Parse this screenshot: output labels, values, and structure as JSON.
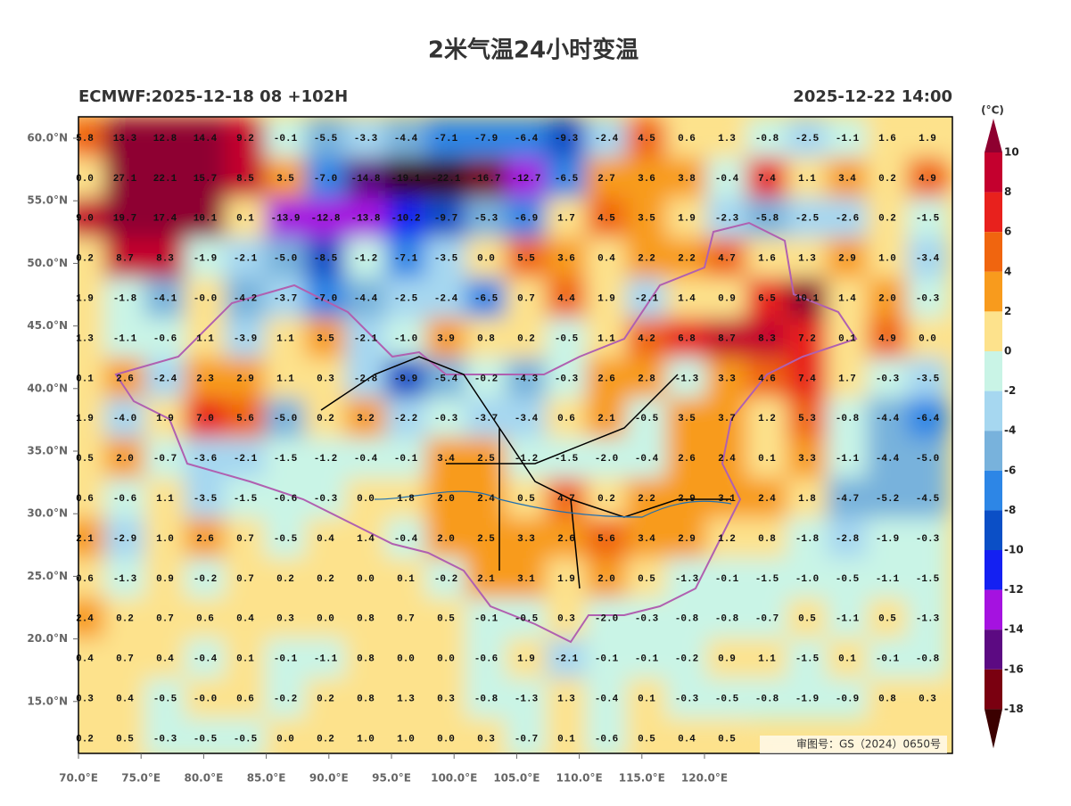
{
  "title": "2米气温24小时变温",
  "subtitle_left": "ECMWF:2025-12-18 08 +102H",
  "subtitle_right": "2025-12-22 14:00",
  "lat_ticks": [
    "60.0°N",
    "55.0°N",
    "50.0°N",
    "45.0°N",
    "40.0°N",
    "35.0°N",
    "30.0°N",
    "25.0°N",
    "20.0°N",
    "15.0°N"
  ],
  "lon_ticks": [
    "70.0°E",
    "75.0°E",
    "80.0°E",
    "85.0°E",
    "90.0°E",
    "95.0°E",
    "100.0°E",
    "105.0°E",
    "110.0°E",
    "115.0°E",
    "120.0°E"
  ],
  "colorbar": {
    "unit": "(°C)",
    "labels": [
      "10",
      "8",
      "6",
      "4",
      "2",
      "0",
      "-2",
      "-4",
      "-6",
      "-8",
      "-10",
      "-12",
      "-14",
      "-16",
      "-18"
    ],
    "colors": [
      "#8e0030",
      "#c4002e",
      "#e8211d",
      "#f0650f",
      "#f89b1d",
      "#fde28c",
      "#c9f4e6",
      "#a6d7f0",
      "#78b2dc",
      "#2d86e6",
      "#0b4fc6",
      "#1420f2",
      "#a512e0",
      "#5c0a82",
      "#7a0010",
      "#3b0000"
    ]
  },
  "grid": [
    [
      "5.8",
      "13.3",
      "12.8",
      "14.4",
      "9.2",
      "-0.1",
      "-5.5",
      "-3.3",
      "-4.4",
      "-7.1",
      "-7.9",
      "-6.4",
      "-9.3",
      "-2.4",
      "4.5",
      "0.6",
      "1.3",
      "-0.8",
      "-2.5",
      "-1.1",
      "1.6",
      "1.9"
    ],
    [
      "0.0",
      "27.1",
      "22.1",
      "15.7",
      "8.5",
      "3.5",
      "-7.0",
      "-14.8",
      "-19.1",
      "-22.1",
      "-16.7",
      "-12.7",
      "-6.5",
      "2.7",
      "3.6",
      "3.8",
      "-0.4",
      "7.4",
      "1.1",
      "3.4",
      "0.2",
      "4.9"
    ],
    [
      "9.0",
      "19.7",
      "17.4",
      "10.1",
      "0.1",
      "-13.9",
      "-12.8",
      "-13.8",
      "-10.2",
      "-9.7",
      "-5.3",
      "-6.9",
      "1.7",
      "4.5",
      "3.5",
      "1.9",
      "-2.3",
      "-5.8",
      "-2.5",
      "-2.6",
      "0.2",
      "-1.5"
    ],
    [
      "0.2",
      "8.7",
      "8.3",
      "-1.9",
      "-2.1",
      "-5.0",
      "-8.5",
      "-1.2",
      "-7.1",
      "-3.5",
      "0.0",
      "5.5",
      "3.6",
      "0.4",
      "2.2",
      "2.2",
      "4.7",
      "1.6",
      "1.3",
      "2.9",
      "1.0",
      "-3.4"
    ],
    [
      "1.9",
      "-1.8",
      "-4.1",
      "-0.0",
      "-4.2",
      "-3.7",
      "-7.0",
      "-4.4",
      "-2.5",
      "-2.4",
      "-6.5",
      "0.7",
      "4.4",
      "1.9",
      "-2.1",
      "1.4",
      "0.9",
      "6.5",
      "10.1",
      "1.4",
      "2.0",
      "-0.3"
    ],
    [
      "1.3",
      "-1.1",
      "-0.6",
      "1.1",
      "-3.9",
      "1.1",
      "3.5",
      "-2.1",
      "-1.0",
      "3.9",
      "0.8",
      "0.2",
      "-0.5",
      "1.1",
      "4.2",
      "6.8",
      "8.7",
      "8.3",
      "7.2",
      "0.1",
      "4.9",
      "0.0"
    ],
    [
      "0.1",
      "2.6",
      "-2.4",
      "2.3",
      "2.9",
      "1.1",
      "0.3",
      "-2.8",
      "-9.9",
      "-5.4",
      "-0.2",
      "-4.3",
      "-0.3",
      "2.6",
      "2.8",
      "-1.3",
      "3.3",
      "4.6",
      "7.4",
      "1.7",
      "-0.3",
      "-3.5"
    ],
    [
      "1.9",
      "-4.0",
      "1.9",
      "7.0",
      "5.6",
      "-5.0",
      "0.2",
      "3.2",
      "-2.2",
      "-0.3",
      "-3.7",
      "-3.4",
      "0.6",
      "2.1",
      "-0.5",
      "3.5",
      "3.7",
      "1.2",
      "5.3",
      "-0.8",
      "-4.4",
      "-6.4"
    ],
    [
      "0.5",
      "2.0",
      "-0.7",
      "-3.6",
      "-2.1",
      "-1.5",
      "-1.2",
      "-0.4",
      "-0.1",
      "3.4",
      "2.5",
      "-1.2",
      "-1.5",
      "-2.0",
      "-0.4",
      "2.6",
      "2.4",
      "0.1",
      "3.3",
      "-1.1",
      "-4.4",
      "-5.0"
    ],
    [
      "0.6",
      "-0.6",
      "1.1",
      "-3.5",
      "-1.5",
      "-0.6",
      "-0.3",
      "0.0",
      "1.8",
      "2.0",
      "2.4",
      "0.5",
      "4.7",
      "0.2",
      "2.2",
      "2.9",
      "3.1",
      "2.4",
      "1.8",
      "-4.7",
      "-5.2",
      "-4.5"
    ],
    [
      "2.1",
      "-2.9",
      "1.0",
      "2.6",
      "0.7",
      "-0.5",
      "0.4",
      "1.4",
      "-0.4",
      "2.0",
      "2.5",
      "3.3",
      "2.6",
      "5.6",
      "3.4",
      "2.9",
      "1.2",
      "0.8",
      "-1.8",
      "-2.8",
      "-1.9",
      "-0.3"
    ],
    [
      "0.6",
      "-1.3",
      "0.9",
      "-0.2",
      "0.7",
      "0.2",
      "0.2",
      "0.0",
      "0.1",
      "-0.2",
      "2.1",
      "3.1",
      "1.9",
      "2.0",
      "0.5",
      "-1.3",
      "-0.1",
      "-1.5",
      "-1.0",
      "-0.5",
      "-1.1",
      "-1.5"
    ],
    [
      "2.4",
      "0.2",
      "0.7",
      "0.6",
      "0.4",
      "0.3",
      "0.0",
      "0.8",
      "0.7",
      "0.5",
      "-0.1",
      "-0.5",
      "0.3",
      "-2.0",
      "-0.3",
      "-0.8",
      "-0.8",
      "-0.7",
      "0.5",
      "-1.1",
      "0.5",
      "-1.3"
    ],
    [
      "0.4",
      "0.7",
      "0.4",
      "-0.4",
      "0.1",
      "-0.1",
      "-1.1",
      "0.8",
      "0.0",
      "0.0",
      "-0.6",
      "1.9",
      "-2.1",
      "-0.1",
      "-0.1",
      "-0.2",
      "0.9",
      "1.1",
      "-1.5",
      "0.1",
      "-0.1",
      "-0.8"
    ],
    [
      "0.3",
      "0.4",
      "-0.5",
      "-0.0",
      "0.6",
      "-0.2",
      "0.2",
      "0.8",
      "1.3",
      "0.3",
      "-0.8",
      "-1.3",
      "1.3",
      "-0.4",
      "0.1",
      "-0.3",
      "-0.5",
      "-0.8",
      "-1.9",
      "-0.9",
      "0.8",
      "0.3"
    ],
    [
      "0.2",
      "0.5",
      "-0.3",
      "-0.5",
      "-0.5",
      "0.0",
      "0.2",
      "1.0",
      "1.0",
      "0.0",
      "0.3",
      "-0.7",
      "0.1",
      "-0.6",
      "0.5",
      "0.4",
      "0.5"
    ]
  ],
  "map_note": "审图号：GS（2024）0650号"
}
